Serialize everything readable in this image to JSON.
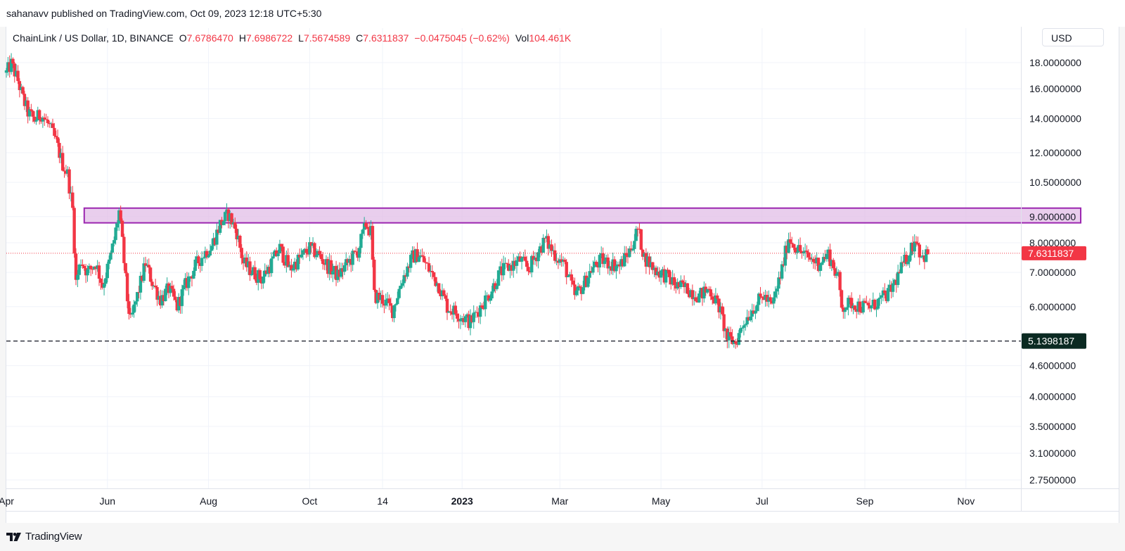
{
  "publish_line": "sahanavv published on TradingView.com, Oct 09, 2023 12:18 UTC+5:30",
  "legend": {
    "symbol": "ChainLink / US Dollar, 1D, BINANCE",
    "o_label": "O",
    "o_value": "7.6786470",
    "h_label": "H",
    "h_value": "7.6986722",
    "l_label": "L",
    "l_value": "7.5674589",
    "c_label": "C",
    "c_value": "7.6311837",
    "change": "−0.0475045 (−0.62%)",
    "vol_label": "Vol",
    "vol_value": "104.461K"
  },
  "currency": "USD",
  "brand": "TradingView",
  "colors": {
    "up": "#22ab94",
    "down": "#f23645",
    "zone_fill": "#e1bee7",
    "zone_stroke": "#9c27b0",
    "support_line": "#131722",
    "support_label_bg": "#0b2a22",
    "price_label_bg": "#f23645"
  },
  "chart_data": {
    "type": "candlestick",
    "scale": "log",
    "y_ticks": [
      {
        "value": 18.0,
        "label": "18.0000000"
      },
      {
        "value": 16.0,
        "label": "16.0000000"
      },
      {
        "value": 14.0,
        "label": "14.0000000"
      },
      {
        "value": 12.0,
        "label": "12.0000000"
      },
      {
        "value": 10.5,
        "label": "10.5000000"
      },
      {
        "value": 9.0,
        "label": "9.0000000"
      },
      {
        "value": 8.0,
        "label": "8.0000000"
      },
      {
        "value": 7.0,
        "label": "7.0000000"
      },
      {
        "value": 6.0,
        "label": "6.0000000"
      },
      {
        "value": 4.6,
        "label": "4.6000000"
      },
      {
        "value": 4.0,
        "label": "4.0000000"
      },
      {
        "value": 3.5,
        "label": "3.5000000"
      },
      {
        "value": 3.1,
        "label": "3.1000000"
      },
      {
        "value": 2.75,
        "label": "2.7500000"
      }
    ],
    "x_ticks": [
      {
        "date": "2022-04-01",
        "label": "Apr",
        "bold": false
      },
      {
        "date": "2022-06-01",
        "label": "Jun",
        "bold": false
      },
      {
        "date": "2022-08-01",
        "label": "Aug",
        "bold": false
      },
      {
        "date": "2022-10-01",
        "label": "Oct",
        "bold": false
      },
      {
        "date": "2022-11-14",
        "label": "14",
        "bold": false
      },
      {
        "date": "2023-01-01",
        "label": "2023",
        "bold": true
      },
      {
        "date": "2023-03-01",
        "label": "Mar",
        "bold": false
      },
      {
        "date": "2023-05-01",
        "label": "May",
        "bold": false
      },
      {
        "date": "2023-07-01",
        "label": "Jul",
        "bold": false
      },
      {
        "date": "2023-09-01",
        "label": "Sep",
        "bold": false
      },
      {
        "date": "2023-11-01",
        "label": "Nov",
        "bold": false
      }
    ],
    "resistance_zone": {
      "from": 8.75,
      "to": 9.35,
      "start_date": "2022-05-18"
    },
    "support_level": {
      "value": 5.1398187,
      "label": "5.1398187"
    },
    "last_price": {
      "value": 7.6311837,
      "label": "7.6311837"
    },
    "price_path": [
      {
        "date": "2022-04-01",
        "close": 17.2
      },
      {
        "date": "2022-04-04",
        "close": 17.9
      },
      {
        "date": "2022-04-08",
        "close": 16.6
      },
      {
        "date": "2022-04-11",
        "close": 15.3
      },
      {
        "date": "2022-04-14",
        "close": 14.4
      },
      {
        "date": "2022-04-18",
        "close": 13.9
      },
      {
        "date": "2022-04-22",
        "close": 14.3
      },
      {
        "date": "2022-04-27",
        "close": 13.5
      },
      {
        "date": "2022-05-01",
        "close": 12.6
      },
      {
        "date": "2022-05-05",
        "close": 11.4
      },
      {
        "date": "2022-05-08",
        "close": 10.9
      },
      {
        "date": "2022-05-11",
        "close": 9.3
      },
      {
        "date": "2022-05-13",
        "close": 6.7
      },
      {
        "date": "2022-05-16",
        "close": 7.4
      },
      {
        "date": "2022-05-20",
        "close": 7.0
      },
      {
        "date": "2022-05-25",
        "close": 7.3
      },
      {
        "date": "2022-05-29",
        "close": 6.6
      },
      {
        "date": "2022-06-02",
        "close": 7.3
      },
      {
        "date": "2022-06-05",
        "close": 8.1
      },
      {
        "date": "2022-06-08",
        "close": 9.2
      },
      {
        "date": "2022-06-10",
        "close": 8.0
      },
      {
        "date": "2022-06-13",
        "close": 6.2
      },
      {
        "date": "2022-06-15",
        "close": 5.6
      },
      {
        "date": "2022-06-19",
        "close": 6.3
      },
      {
        "date": "2022-06-24",
        "close": 7.3
      },
      {
        "date": "2022-06-28",
        "close": 6.7
      },
      {
        "date": "2022-07-03",
        "close": 6.2
      },
      {
        "date": "2022-07-08",
        "close": 6.5
      },
      {
        "date": "2022-07-13",
        "close": 6.0
      },
      {
        "date": "2022-07-18",
        "close": 6.6
      },
      {
        "date": "2022-07-24",
        "close": 7.2
      },
      {
        "date": "2022-07-29",
        "close": 7.6
      },
      {
        "date": "2022-08-03",
        "close": 7.9
      },
      {
        "date": "2022-08-08",
        "close": 8.7
      },
      {
        "date": "2022-08-13",
        "close": 9.1
      },
      {
        "date": "2022-08-18",
        "close": 8.4
      },
      {
        "date": "2022-08-22",
        "close": 7.3
      },
      {
        "date": "2022-08-28",
        "close": 7.0
      },
      {
        "date": "2022-09-02",
        "close": 6.8
      },
      {
        "date": "2022-09-08",
        "close": 7.3
      },
      {
        "date": "2022-09-13",
        "close": 7.8
      },
      {
        "date": "2022-09-19",
        "close": 7.1
      },
      {
        "date": "2022-09-24",
        "close": 7.4
      },
      {
        "date": "2022-10-01",
        "close": 7.8
      },
      {
        "date": "2022-10-06",
        "close": 7.6
      },
      {
        "date": "2022-10-12",
        "close": 7.2
      },
      {
        "date": "2022-10-18",
        "close": 6.9
      },
      {
        "date": "2022-10-24",
        "close": 7.3
      },
      {
        "date": "2022-10-30",
        "close": 7.7
      },
      {
        "date": "2022-11-04",
        "close": 8.7
      },
      {
        "date": "2022-11-07",
        "close": 8.4
      },
      {
        "date": "2022-11-09",
        "close": 6.3
      },
      {
        "date": "2022-11-14",
        "close": 6.2
      },
      {
        "date": "2022-11-20",
        "close": 5.9
      },
      {
        "date": "2022-11-26",
        "close": 6.8
      },
      {
        "date": "2022-12-02",
        "close": 7.5
      },
      {
        "date": "2022-12-06",
        "close": 7.6
      },
      {
        "date": "2022-12-12",
        "close": 7.1
      },
      {
        "date": "2022-12-18",
        "close": 6.6
      },
      {
        "date": "2022-12-23",
        "close": 6.0
      },
      {
        "date": "2022-12-30",
        "close": 5.8
      },
      {
        "date": "2023-01-06",
        "close": 5.6
      },
      {
        "date": "2023-01-12",
        "close": 6.0
      },
      {
        "date": "2023-01-18",
        "close": 6.4
      },
      {
        "date": "2023-01-24",
        "close": 7.0
      },
      {
        "date": "2023-01-30",
        "close": 7.2
      },
      {
        "date": "2023-02-05",
        "close": 7.4
      },
      {
        "date": "2023-02-10",
        "close": 7.1
      },
      {
        "date": "2023-02-16",
        "close": 7.7
      },
      {
        "date": "2023-02-20",
        "close": 8.1
      },
      {
        "date": "2023-02-26",
        "close": 7.6
      },
      {
        "date": "2023-03-04",
        "close": 7.2
      },
      {
        "date": "2023-03-10",
        "close": 6.3
      },
      {
        "date": "2023-03-15",
        "close": 6.6
      },
      {
        "date": "2023-03-20",
        "close": 7.1
      },
      {
        "date": "2023-03-26",
        "close": 7.4
      },
      {
        "date": "2023-03-31",
        "close": 7.3
      },
      {
        "date": "2023-04-06",
        "close": 7.2
      },
      {
        "date": "2023-04-12",
        "close": 7.7
      },
      {
        "date": "2023-04-17",
        "close": 8.5
      },
      {
        "date": "2023-04-21",
        "close": 7.5
      },
      {
        "date": "2023-04-27",
        "close": 7.1
      },
      {
        "date": "2023-05-04",
        "close": 6.9
      },
      {
        "date": "2023-05-10",
        "close": 6.6
      },
      {
        "date": "2023-05-17",
        "close": 6.5
      },
      {
        "date": "2023-05-24",
        "close": 6.3
      },
      {
        "date": "2023-05-30",
        "close": 6.5
      },
      {
        "date": "2023-06-05",
        "close": 6.0
      },
      {
        "date": "2023-06-10",
        "close": 5.2
      },
      {
        "date": "2023-06-15",
        "close": 5.1
      },
      {
        "date": "2023-06-20",
        "close": 5.6
      },
      {
        "date": "2023-06-26",
        "close": 6.0
      },
      {
        "date": "2023-07-02",
        "close": 6.3
      },
      {
        "date": "2023-07-07",
        "close": 6.0
      },
      {
        "date": "2023-07-13",
        "close": 7.1
      },
      {
        "date": "2023-07-17",
        "close": 8.2
      },
      {
        "date": "2023-07-22",
        "close": 7.8
      },
      {
        "date": "2023-07-28",
        "close": 7.5
      },
      {
        "date": "2023-08-04",
        "close": 7.3
      },
      {
        "date": "2023-08-10",
        "close": 7.6
      },
      {
        "date": "2023-08-16",
        "close": 6.8
      },
      {
        "date": "2023-08-18",
        "close": 6.0
      },
      {
        "date": "2023-08-24",
        "close": 6.1
      },
      {
        "date": "2023-08-30",
        "close": 6.0
      },
      {
        "date": "2023-09-05",
        "close": 6.0
      },
      {
        "date": "2023-09-11",
        "close": 6.2
      },
      {
        "date": "2023-09-16",
        "close": 6.4
      },
      {
        "date": "2023-09-22",
        "close": 7.0
      },
      {
        "date": "2023-09-28",
        "close": 7.7
      },
      {
        "date": "2023-10-02",
        "close": 8.2
      },
      {
        "date": "2023-10-04",
        "close": 7.7
      },
      {
        "date": "2023-10-06",
        "close": 7.5
      },
      {
        "date": "2023-10-09",
        "close": 7.6311837
      }
    ]
  }
}
